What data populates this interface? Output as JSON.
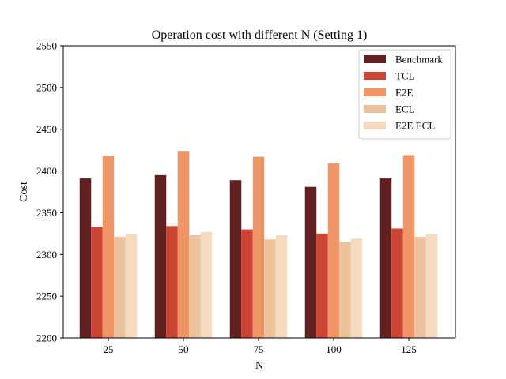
{
  "chart_data": {
    "type": "bar",
    "title": "Operation cost with different N (Setting 1)",
    "xlabel": "N",
    "ylabel": "Cost",
    "categories": [
      "25",
      "50",
      "75",
      "100",
      "125"
    ],
    "ylim": [
      2200,
      2550
    ],
    "yticks": [
      2200,
      2250,
      2300,
      2350,
      2400,
      2450,
      2500,
      2550
    ],
    "grid": false,
    "legend_position": "top-right",
    "series": [
      {
        "name": "Benchmark",
        "color": "#611f1f",
        "values": [
          2391,
          2395,
          2389,
          2381,
          2391
        ]
      },
      {
        "name": "TCL",
        "color": "#cc4433",
        "values": [
          2333,
          2334,
          2330,
          2325,
          2331
        ]
      },
      {
        "name": "E2E",
        "color": "#f09565",
        "values": [
          2418,
          2424,
          2417,
          2409,
          2419
        ]
      },
      {
        "name": "ECL",
        "color": "#edc39d",
        "values": [
          2321,
          2323,
          2318,
          2315,
          2321
        ]
      },
      {
        "name": "E2E ECL",
        "color": "#f5dcc0",
        "values": [
          2325,
          2327,
          2323,
          2319,
          2325
        ]
      }
    ]
  }
}
